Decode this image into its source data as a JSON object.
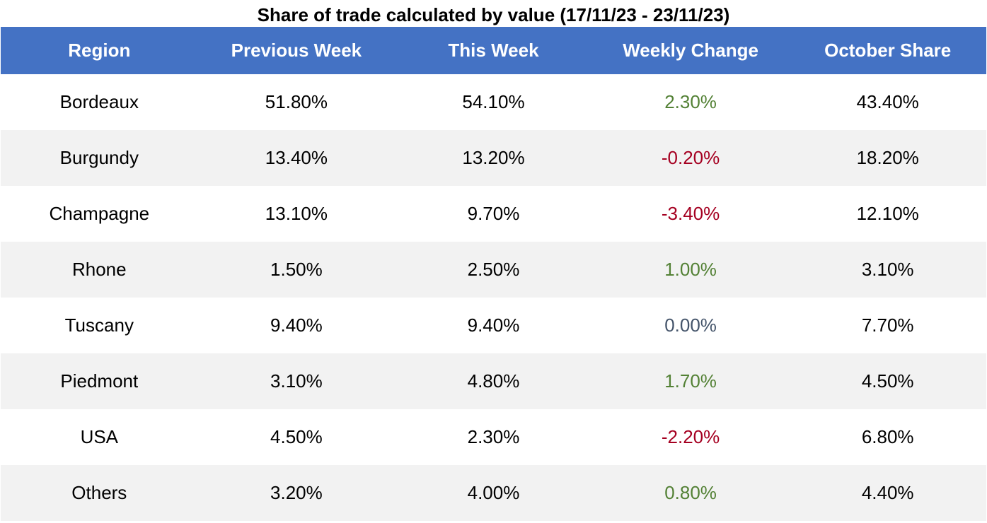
{
  "chart_data": {
    "type": "table",
    "title": "Share of trade calculated by value (17/11/23 - 23/11/23)",
    "columns": [
      "Region",
      "Previous Week",
      "This Week",
      "Weekly Change",
      "October Share"
    ],
    "rows": [
      {
        "region": "Bordeaux",
        "previous_week": "51.80%",
        "this_week": "54.10%",
        "weekly_change": "2.30%",
        "october_share": "43.40%"
      },
      {
        "region": "Burgundy",
        "previous_week": "13.40%",
        "this_week": "13.20%",
        "weekly_change": "-0.20%",
        "october_share": "18.20%"
      },
      {
        "region": "Champagne",
        "previous_week": "13.10%",
        "this_week": "9.70%",
        "weekly_change": "-3.40%",
        "october_share": "12.10%"
      },
      {
        "region": "Rhone",
        "previous_week": "1.50%",
        "this_week": "2.50%",
        "weekly_change": "1.00%",
        "october_share": "3.10%"
      },
      {
        "region": "Tuscany",
        "previous_week": "9.40%",
        "this_week": "9.40%",
        "weekly_change": "0.00%",
        "october_share": "7.70%"
      },
      {
        "region": "Piedmont",
        "previous_week": "3.10%",
        "this_week": "4.80%",
        "weekly_change": "1.70%",
        "october_share": "4.50%"
      },
      {
        "region": "USA",
        "previous_week": "4.50%",
        "this_week": "2.30%",
        "weekly_change": "-2.20%",
        "october_share": "6.80%"
      },
      {
        "region": "Others",
        "previous_week": "3.20%",
        "this_week": "4.00%",
        "weekly_change": "0.80%",
        "october_share": "4.40%"
      }
    ],
    "colors": {
      "header_bg": "#4472c4",
      "header_text": "#ffffff",
      "band": "#f2f2f2",
      "positive": "#538135",
      "negative": "#a50021",
      "neutral": "#44546a"
    }
  }
}
